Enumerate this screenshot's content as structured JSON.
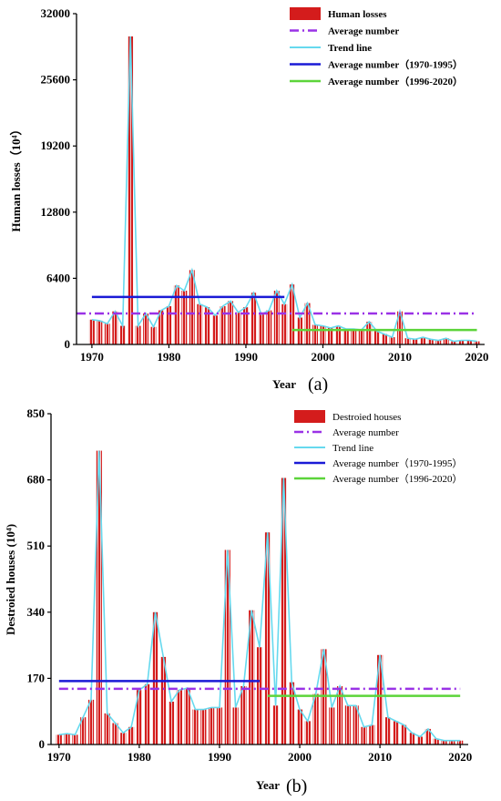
{
  "chart_data": [
    {
      "type": "bar",
      "panel_label": "(a)",
      "xlabel": "Year",
      "ylabel": "Human losses（10⁴）",
      "xlim": [
        1968,
        2021
      ],
      "ylim": [
        0,
        32000
      ],
      "yticks": [
        0,
        6400,
        12800,
        19200,
        25600,
        32000
      ],
      "xticks": [
        1970,
        1980,
        1990,
        2000,
        2010,
        2020
      ],
      "x": [
        1970,
        1971,
        1972,
        1973,
        1974,
        1975,
        1976,
        1977,
        1978,
        1979,
        1980,
        1981,
        1982,
        1983,
        1984,
        1985,
        1986,
        1987,
        1988,
        1989,
        1990,
        1991,
        1992,
        1993,
        1994,
        1995,
        1996,
        1997,
        1998,
        1999,
        2000,
        2001,
        2002,
        2003,
        2004,
        2005,
        2006,
        2007,
        2008,
        2009,
        2010,
        2011,
        2012,
        2013,
        2014,
        2015,
        2016,
        2017,
        2018,
        2019,
        2020
      ],
      "series": [
        {
          "name": "Human losses",
          "values": [
            2400,
            2300,
            2000,
            3200,
            1800,
            29800,
            1800,
            3000,
            1700,
            3300,
            3700,
            5700,
            5200,
            7200,
            3900,
            3600,
            2800,
            3700,
            4200,
            3100,
            3600,
            5000,
            2900,
            3300,
            5200,
            3900,
            5800,
            2600,
            4000,
            1900,
            1800,
            1600,
            1800,
            1500,
            1500,
            1400,
            2200,
            1300,
            1000,
            700,
            3200,
            600,
            500,
            700,
            500,
            400,
            600,
            300,
            400,
            400,
            300
          ]
        }
      ],
      "lines": [
        {
          "name": "Average number",
          "value": 3000,
          "from": 1968,
          "to": 2020,
          "color": "#9a32e6",
          "style": "dashdot"
        },
        {
          "name": "Trend line",
          "color": "#66d9ee",
          "style": "solid"
        },
        {
          "name": "Average number（1970-1995）",
          "value": 4600,
          "from": 1970,
          "to": 1995,
          "color": "#1a1ad6",
          "style": "solid"
        },
        {
          "name": "Average number（1996-2020）",
          "value": 1400,
          "from": 1996,
          "to": 2020,
          "color": "#5cd43a",
          "style": "solid"
        }
      ],
      "legend": [
        "Human losses",
        "Average number",
        "Trend line",
        "Average number（1970-1995）",
        "Average number（1996-2020）"
      ],
      "legend_position": "top-right",
      "colors": {
        "bar": "#d41c1c",
        "bar_stripe": "#f4c8c8"
      }
    },
    {
      "type": "bar",
      "panel_label": "(b)",
      "xlabel": "Year",
      "ylabel": "Destroied houses (10⁴)",
      "xlim": [
        1969,
        2021
      ],
      "ylim": [
        0,
        850
      ],
      "yticks": [
        0,
        170,
        340,
        510,
        680,
        850
      ],
      "xticks": [
        1970,
        1980,
        1990,
        2000,
        2010,
        2020
      ],
      "x": [
        1970,
        1971,
        1972,
        1973,
        1974,
        1975,
        1976,
        1977,
        1978,
        1979,
        1980,
        1981,
        1982,
        1983,
        1984,
        1985,
        1986,
        1987,
        1988,
        1989,
        1990,
        1991,
        1992,
        1993,
        1994,
        1995,
        1996,
        1997,
        1998,
        1999,
        2000,
        2001,
        2002,
        2003,
        2004,
        2005,
        2006,
        2007,
        2008,
        2009,
        2010,
        2011,
        2012,
        2013,
        2014,
        2015,
        2016,
        2017,
        2018,
        2019,
        2020
      ],
      "series": [
        {
          "name": "Destroied houses",
          "values": [
            25,
            28,
            25,
            70,
            115,
            755,
            80,
            55,
            30,
            45,
            140,
            155,
            340,
            225,
            110,
            140,
            145,
            90,
            90,
            95,
            95,
            500,
            95,
            150,
            345,
            250,
            545,
            100,
            685,
            160,
            90,
            60,
            130,
            245,
            95,
            150,
            100,
            100,
            45,
            50,
            230,
            70,
            60,
            50,
            30,
            20,
            40,
            15,
            10,
            10,
            10
          ]
        }
      ],
      "lines": [
        {
          "name": "Average number",
          "value": 143,
          "from": 1970,
          "to": 2020,
          "color": "#9a32e6",
          "style": "dashdot"
        },
        {
          "name": "Trend line",
          "color": "#66d9ee",
          "style": "solid"
        },
        {
          "name": "Average number（1970-1995）",
          "value": 163,
          "from": 1970,
          "to": 1995,
          "color": "#1a1ad6",
          "style": "solid"
        },
        {
          "name": "Average number（1996-2020）",
          "value": 125,
          "from": 1996,
          "to": 2020,
          "color": "#5cd43a",
          "style": "solid"
        }
      ],
      "legend": [
        "Destroied houses",
        "Average number",
        "Trend line",
        "Average number（1970-1995）",
        "Average number（1996-2020）"
      ],
      "legend_position": "top-right",
      "colors": {
        "bar": "#d41c1c",
        "bar_stripe": "#f4c8c8"
      }
    }
  ]
}
